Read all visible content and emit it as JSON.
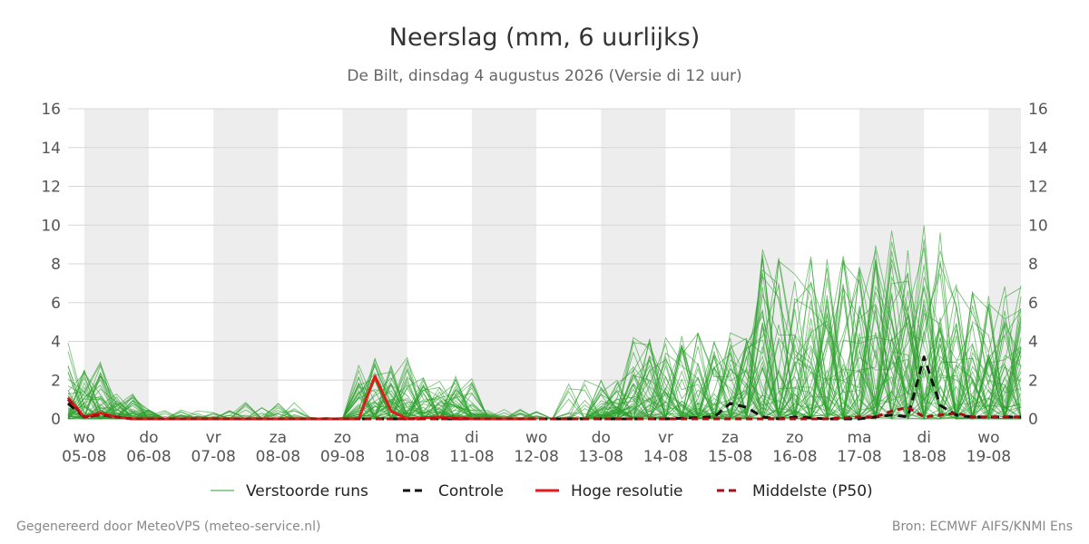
{
  "chart_data": {
    "type": "line",
    "title": "Neerslag (mm, 6 uurlijks)",
    "subtitle": "De Bilt, dinsdag  4 augustus 2026 (Versie di 12 uur)",
    "ylim": [
      0,
      16
    ],
    "yticks": [
      0,
      2,
      4,
      6,
      8,
      10,
      12,
      14,
      16
    ],
    "xlim": [
      -0.25,
      14.5
    ],
    "x_ticks": [
      {
        "x": 0,
        "day": "wo",
        "date": "05-08"
      },
      {
        "x": 1,
        "day": "do",
        "date": "06-08"
      },
      {
        "x": 2,
        "day": "vr",
        "date": "07-08"
      },
      {
        "x": 3,
        "day": "za",
        "date": "08-08"
      },
      {
        "x": 4,
        "day": "zo",
        "date": "09-08"
      },
      {
        "x": 5,
        "day": "ma",
        "date": "10-08"
      },
      {
        "x": 6,
        "day": "di",
        "date": "11-08"
      },
      {
        "x": 7,
        "day": "wo",
        "date": "12-08"
      },
      {
        "x": 8,
        "day": "do",
        "date": "13-08"
      },
      {
        "x": 9,
        "day": "vr",
        "date": "14-08"
      },
      {
        "x": 10,
        "day": "za",
        "date": "15-08"
      },
      {
        "x": 11,
        "day": "zo",
        "date": "16-08"
      },
      {
        "x": 12,
        "day": "ma",
        "date": "17-08"
      },
      {
        "x": 13,
        "day": "di",
        "date": "18-08"
      },
      {
        "x": 14,
        "day": "wo",
        "date": "19-08"
      }
    ],
    "shaded_days": [
      0,
      2,
      4,
      6,
      8,
      10,
      12,
      14
    ],
    "grid": true,
    "legend": {
      "position": "bottom",
      "items": [
        {
          "label": "Verstoorde runs",
          "color": "#2ca02c",
          "style": "thin"
        },
        {
          "label": "Controle",
          "color": "#111111",
          "style": "dashed"
        },
        {
          "label": "Hoge resolutie",
          "color": "#e31a1c",
          "style": "solid"
        },
        {
          "label": "Middelste (P50)",
          "color": "#a50f15",
          "style": "dashed"
        }
      ]
    },
    "series": [
      {
        "name": "Controle",
        "color": "#111111",
        "dash": true,
        "x": [
          -0.25,
          0,
          0.25,
          0.5,
          0.75,
          1,
          2,
          3,
          4,
          5,
          6,
          7,
          8,
          9,
          9.75,
          10,
          10.25,
          10.5,
          10.75,
          11,
          11.5,
          12,
          12.5,
          12.75,
          13,
          13.25,
          13.5,
          13.75,
          14,
          14.5
        ],
        "values": [
          0.8,
          0.1,
          0.2,
          0.1,
          0,
          0,
          0,
          0,
          0,
          0,
          0,
          0,
          0,
          0,
          0.1,
          0.8,
          0.6,
          0.1,
          0,
          0.1,
          0,
          0,
          0.2,
          0.1,
          3.2,
          0.7,
          0.2,
          0.1,
          0.1,
          0.1
        ]
      },
      {
        "name": "Hoge resolutie",
        "color": "#e31a1c",
        "dash": false,
        "x": [
          -0.25,
          0,
          0.25,
          0.5,
          0.75,
          1,
          1.5,
          2,
          3,
          4,
          4.25,
          4.5,
          4.75,
          5,
          5.5,
          6,
          6.5,
          7
        ],
        "values": [
          1.1,
          0.1,
          0.3,
          0.1,
          0,
          0,
          0,
          0,
          0,
          0,
          0,
          2.2,
          0.4,
          0,
          0.1,
          0,
          0,
          0
        ]
      },
      {
        "name": "Middelste (P50)",
        "color": "#a50f15",
        "dash": true,
        "x": [
          -0.25,
          0,
          0.25,
          0.5,
          0.75,
          1,
          2,
          3,
          4,
          5,
          6,
          7,
          8,
          9,
          10,
          11,
          11.5,
          12,
          12.25,
          12.5,
          12.75,
          13,
          13.25,
          13.5,
          13.75,
          14,
          14.5
        ],
        "values": [
          1.0,
          0.1,
          0.2,
          0.1,
          0,
          0,
          0,
          0,
          0,
          0,
          0,
          0,
          0,
          0,
          0,
          0,
          0,
          0.1,
          0.1,
          0.4,
          0.6,
          0.1,
          0.2,
          0.3,
          0.1,
          0.1,
          0.1
        ]
      }
    ]
  },
  "footer": {
    "left": "Gegenereerd door MeteoVPS (meteo-service.nl)",
    "right": "Bron: ECMWF AIFS/KNMI Ens"
  }
}
